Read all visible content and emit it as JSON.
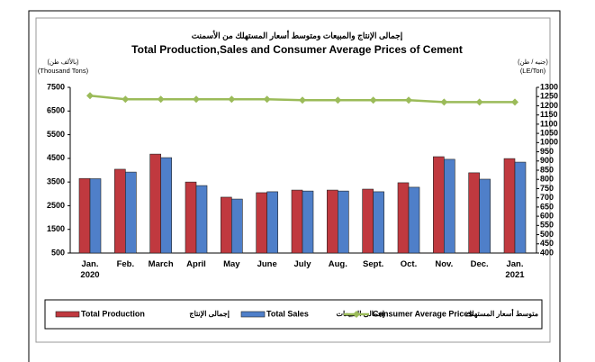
{
  "chart_data": {
    "type": "bar-line",
    "title_ar": "إجمالى الإنتاج والمبيعات ومتوسط أسعار المستهلك من الأسمنت",
    "title": "Total Production,Sales and Consumer Average Prices of Cement",
    "y_label_ar": "(بالألف طن)",
    "y_label": "(Thousand Tons)",
    "y2_label_ar": "(جنيه / طن)",
    "y2_label": "(LE/Ton)",
    "categories": [
      "Jan.\n2020",
      "Feb.",
      "March",
      "April",
      "May",
      "June",
      "July",
      "Aug.",
      "Sept.",
      "Oct.",
      "Nov.",
      "Dec.",
      "Jan.\n2021"
    ],
    "series": [
      {
        "name": "Total Production",
        "name_ar": "إجمالى الإنتاج",
        "type": "bar",
        "color": "#c0393f",
        "values": [
          3650,
          4040,
          4680,
          3500,
          2860,
          3050,
          3160,
          3160,
          3200,
          3470,
          4570,
          3890,
          4490
        ]
      },
      {
        "name": "Total Sales",
        "name_ar": "إجمالى المبيعات",
        "type": "bar",
        "color": "#4f7fc9",
        "values": [
          3640,
          3920,
          4530,
          3350,
          2780,
          3090,
          3120,
          3120,
          3090,
          3280,
          4460,
          3620,
          4340
        ]
      },
      {
        "name": "Consumer Average Prices",
        "name_ar": "متوسط أسعار المستهلك",
        "type": "line",
        "axis": "y2",
        "color": "#9bbb59",
        "values": [
          1255,
          1235,
          1235,
          1235,
          1235,
          1235,
          1230,
          1230,
          1230,
          1230,
          1220,
          1220,
          1220
        ]
      }
    ],
    "ylim": [
      500,
      7500
    ],
    "yticks": [
      500,
      1500,
      2500,
      3500,
      4500,
      5500,
      6500,
      7500
    ],
    "y2lim": [
      400,
      1300
    ],
    "y2ticks": [
      400,
      450,
      500,
      550,
      600,
      650,
      700,
      750,
      800,
      850,
      900,
      950,
      1000,
      1050,
      1100,
      1150,
      1200,
      1250,
      1300
    ]
  }
}
